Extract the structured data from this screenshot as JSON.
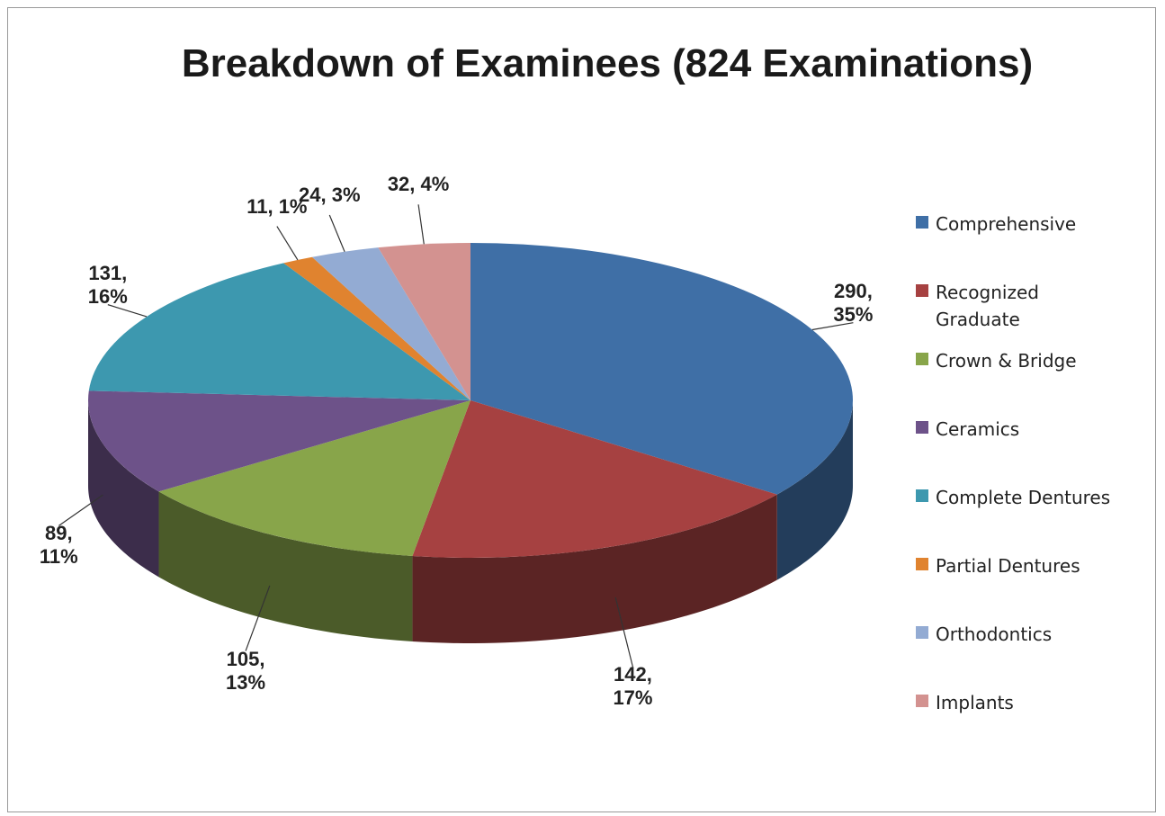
{
  "chart_data": {
    "type": "pie",
    "title": "Breakdown of Examinees (824 Examinations)",
    "categories": [
      "Comprehensive",
      "Recognized Graduate",
      "Crown & Bridge",
      "Ceramics",
      "Complete Dentures",
      "Partial Dentures",
      "Orthodontics",
      "Implants"
    ],
    "values": [
      290,
      142,
      105,
      89,
      131,
      11,
      24,
      32
    ],
    "value_labels": [
      "290, 35%",
      "142, 17%",
      "105, 13%",
      "89, 11%",
      "131, 16%",
      "11, 1%",
      "24, 3%",
      "32, 4%"
    ],
    "colors": [
      "#3f6fa6",
      "#a64141",
      "#88a54a",
      "#6d5289",
      "#3d98af",
      "#e0832f",
      "#93abd3",
      "#d39290"
    ],
    "legend": "right"
  }
}
